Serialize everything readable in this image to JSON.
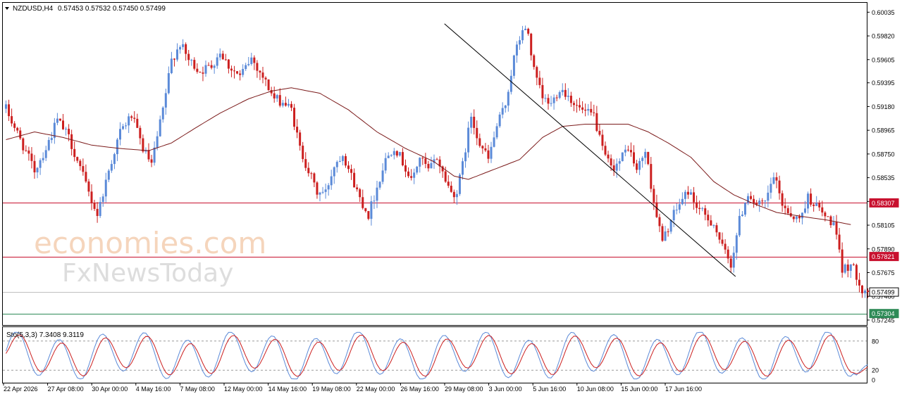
{
  "chart_data": {
    "type": "candlestick",
    "symbol_label": "NZDUSD,H4",
    "ohlc_label": "0.57453 0.57532 0.57450 0.57499",
    "price_range": [
      0.572,
      0.6012
    ],
    "y_ticks": [
      "0.60035",
      "0.59820",
      "0.59605",
      "0.59395",
      "0.59180",
      "0.58965",
      "0.58750",
      "0.58535",
      "0.58320",
      "0.58105",
      "0.57890",
      "0.57675",
      "0.57460",
      "0.57245"
    ],
    "x_ticks": [
      "22 Apr 2026",
      "27 Apr 08:00",
      "30 Apr 00:00",
      "4 May 16:00",
      "7 May 08:00",
      "12 May 00:00",
      "14 May 16:00",
      "19 May 08:00",
      "22 May 00:00",
      "26 May 16:00",
      "29 May 08:00",
      "3 Jun 00:00",
      "5 Jun 16:00",
      "10 Jun 08:00",
      "15 Jun 00:00",
      "17 Jun 16:00"
    ],
    "horizontal_lines": [
      {
        "price": 0.58307,
        "label": "0.58307",
        "color": "#c8102e"
      },
      {
        "price": 0.57821,
        "label": "0.57821",
        "color": "#c8102e"
      },
      {
        "price": 0.57499,
        "label": "0.57499",
        "color": "#bfbfbf"
      },
      {
        "price": 0.57304,
        "label": "0.57304",
        "color": "#2e8b57"
      }
    ],
    "trendline": {
      "from": {
        "bar": 154,
        "price": 0.5993
      },
      "to": {
        "bar": 256,
        "price": 0.5764
      }
    },
    "path_anchors": [
      [
        0,
        0.5916
      ],
      [
        5,
        0.5888
      ],
      [
        10,
        0.586
      ],
      [
        14,
        0.588
      ],
      [
        18,
        0.5906
      ],
      [
        22,
        0.589
      ],
      [
        26,
        0.5862
      ],
      [
        29,
        0.584
      ],
      [
        32,
        0.582
      ],
      [
        36,
        0.586
      ],
      [
        40,
        0.5895
      ],
      [
        44,
        0.591
      ],
      [
        48,
        0.588
      ],
      [
        51,
        0.5865
      ],
      [
        55,
        0.5915
      ],
      [
        58,
        0.596
      ],
      [
        61,
        0.5975
      ],
      [
        64,
        0.596
      ],
      [
        68,
        0.595
      ],
      [
        72,
        0.5955
      ],
      [
        75,
        0.5968
      ],
      [
        78,
        0.5955
      ],
      [
        82,
        0.5945
      ],
      [
        86,
        0.5962
      ],
      [
        90,
        0.5945
      ],
      [
        94,
        0.5925
      ],
      [
        97,
        0.5922
      ],
      [
        100,
        0.5915
      ],
      [
        103,
        0.588
      ],
      [
        106,
        0.586
      ],
      [
        109,
        0.584
      ],
      [
        112,
        0.584
      ],
      [
        115,
        0.5865
      ],
      [
        118,
        0.5876
      ],
      [
        121,
        0.5855
      ],
      [
        124,
        0.5835
      ],
      [
        127,
        0.582
      ],
      [
        130,
        0.5845
      ],
      [
        133,
        0.587
      ],
      [
        136,
        0.5882
      ],
      [
        139,
        0.5868
      ],
      [
        142,
        0.585
      ],
      [
        145,
        0.5872
      ],
      [
        148,
        0.586
      ],
      [
        151,
        0.5872
      ],
      [
        153,
        0.5858
      ],
      [
        156,
        0.584
      ],
      [
        158,
        0.584
      ],
      [
        160,
        0.5865
      ],
      [
        163,
        0.591
      ],
      [
        166,
        0.5885
      ],
      [
        169,
        0.587
      ],
      [
        172,
        0.59
      ],
      [
        175,
        0.592
      ],
      [
        178,
        0.5962
      ],
      [
        181,
        0.5988
      ],
      [
        183,
        0.5984
      ],
      [
        185,
        0.595
      ],
      [
        188,
        0.5925
      ],
      [
        191,
        0.592
      ],
      [
        194,
        0.5935
      ],
      [
        197,
        0.5928
      ],
      [
        200,
        0.5918
      ],
      [
        203,
        0.5912
      ],
      [
        206,
        0.591
      ],
      [
        209,
        0.5878
      ],
      [
        212,
        0.5862
      ],
      [
        215,
        0.5868
      ],
      [
        218,
        0.5882
      ],
      [
        221,
        0.586
      ],
      [
        224,
        0.5878
      ],
      [
        227,
        0.5832
      ],
      [
        230,
        0.5795
      ],
      [
        233,
        0.5815
      ],
      [
        236,
        0.583
      ],
      [
        239,
        0.5842
      ],
      [
        242,
        0.5828
      ],
      [
        245,
        0.5818
      ],
      [
        248,
        0.5812
      ],
      [
        251,
        0.579
      ],
      [
        254,
        0.5775
      ],
      [
        257,
        0.5815
      ],
      [
        260,
        0.584
      ],
      [
        263,
        0.5828
      ],
      [
        266,
        0.583
      ],
      [
        269,
        0.5855
      ],
      [
        272,
        0.583
      ],
      [
        275,
        0.582
      ],
      [
        278,
        0.5815
      ],
      [
        281,
        0.5836
      ],
      [
        284,
        0.5828
      ],
      [
        287,
        0.5818
      ],
      [
        290,
        0.5812
      ],
      [
        293,
        0.577
      ],
      [
        296,
        0.5775
      ],
      [
        299,
        0.576
      ],
      [
        300,
        0.5752
      ],
      [
        302,
        0.57499
      ]
    ],
    "moving_average_anchors": [
      [
        0,
        0.5888
      ],
      [
        10,
        0.5895
      ],
      [
        20,
        0.589
      ],
      [
        30,
        0.5883
      ],
      [
        40,
        0.588
      ],
      [
        50,
        0.5878
      ],
      [
        58,
        0.5885
      ],
      [
        66,
        0.5898
      ],
      [
        75,
        0.5912
      ],
      [
        85,
        0.5925
      ],
      [
        93,
        0.5932
      ],
      [
        100,
        0.5935
      ],
      [
        110,
        0.593
      ],
      [
        120,
        0.5915
      ],
      [
        130,
        0.5895
      ],
      [
        140,
        0.588
      ],
      [
        150,
        0.5868
      ],
      [
        157,
        0.5855
      ],
      [
        162,
        0.5852
      ],
      [
        170,
        0.586
      ],
      [
        180,
        0.587
      ],
      [
        188,
        0.589
      ],
      [
        195,
        0.59
      ],
      [
        203,
        0.5902
      ],
      [
        210,
        0.5902
      ],
      [
        218,
        0.5902
      ],
      [
        225,
        0.5895
      ],
      [
        232,
        0.5885
      ],
      [
        240,
        0.5872
      ],
      [
        248,
        0.585
      ],
      [
        255,
        0.5838
      ],
      [
        262,
        0.583
      ],
      [
        270,
        0.5822
      ],
      [
        280,
        0.5818
      ],
      [
        288,
        0.5815
      ],
      [
        296,
        0.5811
      ]
    ],
    "stochastic": {
      "label": "Sto(5,3,3) 7.3408 9.3119",
      "y_ticks": [
        "80",
        "20",
        "0"
      ],
      "level_lines": [
        80,
        20
      ]
    },
    "colors": {
      "bull": "#5b8ad8",
      "bear": "#cc1f1f",
      "ma": "#7b1a1a",
      "trend": "#000000",
      "main_stoch": "#5b8ad8",
      "signal_stoch": "#cc1f1f"
    }
  },
  "watermark": {
    "line1": "economies.com",
    "line2": "FxNewsToday"
  }
}
